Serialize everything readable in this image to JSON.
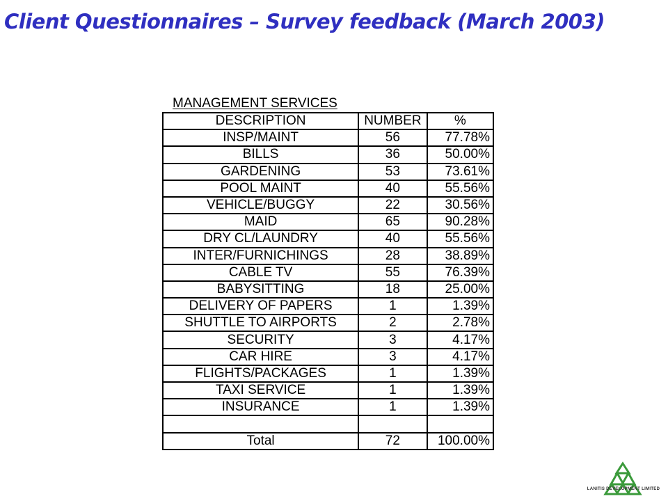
{
  "title": "Client Questionnaires – Survey feedback (March 2003)",
  "section_title": "MANAGEMENT SERVICES",
  "table": {
    "headers": [
      "DESCRIPTION",
      "NUMBER",
      "%"
    ],
    "rows": [
      [
        "INSP/MAINT",
        "56",
        "77.78%"
      ],
      [
        "BILLS",
        "36",
        "50.00%"
      ],
      [
        "GARDENING",
        "53",
        "73.61%"
      ],
      [
        "POOL MAINT",
        "40",
        "55.56%"
      ],
      [
        "VEHICLE/BUGGY",
        "22",
        "30.56%"
      ],
      [
        "MAID",
        "65",
        "90.28%"
      ],
      [
        "DRY CL/LAUNDRY",
        "40",
        "55.56%"
      ],
      [
        "INTER/FURNICHINGS",
        "28",
        "38.89%"
      ],
      [
        "CABLE TV",
        "55",
        "76.39%"
      ],
      [
        "BABYSITTING",
        "18",
        "25.00%"
      ],
      [
        "DELIVERY OF PAPERS",
        "1",
        "1.39%"
      ],
      [
        "SHUTTLE TO AIRPORTS",
        "2",
        "2.78%"
      ],
      [
        "SECURITY",
        "3",
        "4.17%"
      ],
      [
        "CAR HIRE",
        "3",
        "4.17%"
      ],
      [
        "FLIGHTS/PACKAGES",
        "1",
        "1.39%"
      ],
      [
        "TAXI SERVICE",
        "1",
        "1.39%"
      ],
      [
        "INSURANCE",
        "1",
        "1.39%"
      ],
      [
        "",
        "",
        ""
      ]
    ],
    "total": [
      "Total",
      "72",
      "100.00%"
    ]
  },
  "logo": {
    "name": "LANITIS DEVELOPMENT LIMITED",
    "color": "#3a9a3a",
    "icon": "triangles-logo-icon"
  }
}
